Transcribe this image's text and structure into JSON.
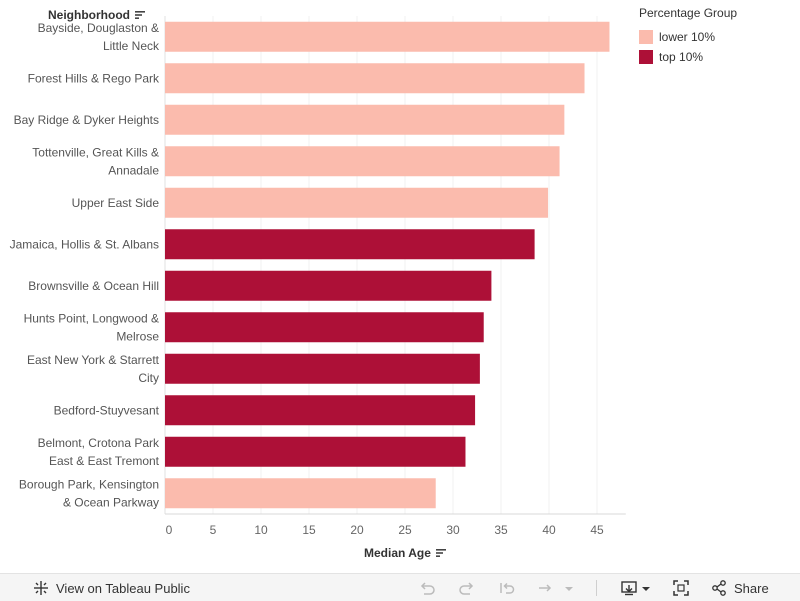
{
  "y_header": "Neighborhood",
  "x_header": "Median Age",
  "legend": {
    "title": "Percentage Group",
    "items": [
      {
        "label": "lower 10%",
        "color": "#fbbbad"
      },
      {
        "label": "top 10%",
        "color": "#ad1037"
      }
    ]
  },
  "toolbar": {
    "view_label": "View on Tableau Public",
    "share_label": "Share"
  },
  "chart_data": {
    "type": "bar",
    "orientation": "horizontal",
    "xlabel": "Median Age",
    "ylabel": "Neighborhood",
    "xlim": [
      0,
      48
    ],
    "xticks": [
      0,
      5,
      10,
      15,
      20,
      25,
      30,
      35,
      40,
      45
    ],
    "grid": true,
    "legend_position": "top-right",
    "rows": [
      {
        "label": [
          "Bayside, Douglaston &",
          "Little Neck"
        ],
        "value": 46.3,
        "group": "lower 10%"
      },
      {
        "label": [
          "Forest Hills & Rego Park"
        ],
        "value": 43.7,
        "group": "lower 10%"
      },
      {
        "label": [
          "Bay Ridge & Dyker Heights"
        ],
        "value": 41.6,
        "group": "lower 10%"
      },
      {
        "label": [
          "Tottenville, Great Kills &",
          "Annadale"
        ],
        "value": 41.1,
        "group": "lower 10%"
      },
      {
        "label": [
          "Upper East Side"
        ],
        "value": 39.9,
        "group": "lower 10%"
      },
      {
        "label": [
          "Jamaica, Hollis & St. Albans"
        ],
        "value": 38.5,
        "group": "top 10%"
      },
      {
        "label": [
          "Brownsville & Ocean Hill"
        ],
        "value": 34.0,
        "group": "top 10%"
      },
      {
        "label": [
          "Hunts Point, Longwood &",
          "Melrose"
        ],
        "value": 33.2,
        "group": "top 10%"
      },
      {
        "label": [
          "East New York & Starrett",
          "City"
        ],
        "value": 32.8,
        "group": "top 10%"
      },
      {
        "label": [
          "Bedford-Stuyvesant"
        ],
        "value": 32.3,
        "group": "top 10%"
      },
      {
        "label": [
          "Belmont, Crotona Park",
          "East & East Tremont"
        ],
        "value": 31.3,
        "group": "top 10%"
      },
      {
        "label": [
          "Borough Park, Kensington",
          "& Ocean Parkway"
        ],
        "value": 28.2,
        "group": "lower 10%"
      }
    ]
  }
}
